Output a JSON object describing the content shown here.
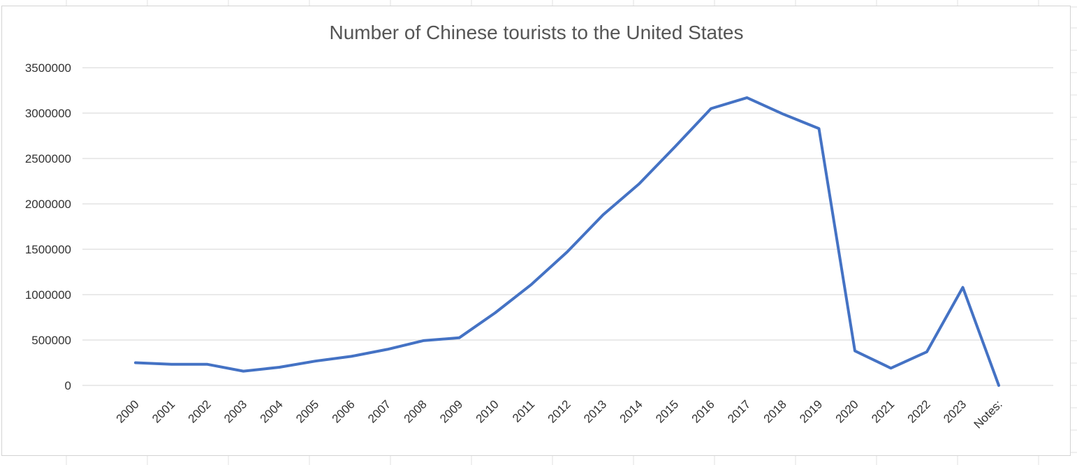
{
  "chart_data": {
    "type": "line",
    "title": "Number of Chinese tourists to the United States",
    "xlabel": "",
    "ylabel": "",
    "categories": [
      "2000",
      "2001",
      "2002",
      "2003",
      "2004",
      "2005",
      "2006",
      "2007",
      "2008",
      "2009",
      "2010",
      "2011",
      "2012",
      "2013",
      "2014",
      "2015",
      "2016",
      "2017",
      "2018",
      "2019",
      "2020",
      "2021",
      "2022",
      "2023",
      "Notes:"
    ],
    "series": [
      {
        "values": [
          250000,
          232000,
          232000,
          157000,
          200000,
          268000,
          320000,
          397000,
          493000,
          525000,
          800000,
          1110000,
          1470000,
          1880000,
          2220000,
          2630000,
          3050000,
          3170000,
          2990000,
          2830000,
          380000,
          190000,
          370000,
          1080000,
          0
        ],
        "color": "#4472c4"
      }
    ],
    "ylim": [
      0,
      3500000
    ],
    "yticks": [
      0,
      500000,
      1000000,
      1500000,
      2000000,
      2500000,
      3000000,
      3500000
    ],
    "grid": true,
    "legend": "none"
  }
}
